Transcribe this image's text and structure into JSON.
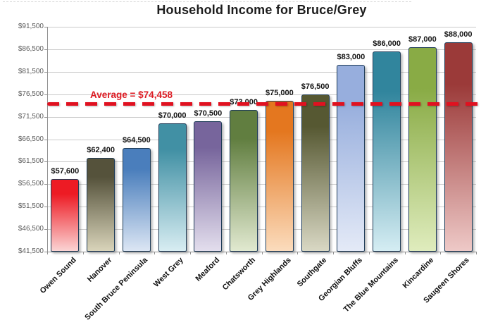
{
  "chart_data": {
    "type": "bar",
    "title": "Household Income for Bruce/Grey",
    "categories": [
      "Owen Sound",
      "Hanover",
      "South Bruce Peninsula",
      "West Grey",
      "Meaford",
      "Chatsworth",
      "Grey Highlands",
      "Southgate",
      "Georgian Bluffs",
      "The Blue Mountains",
      "Kincardine",
      "Saugeen Shores"
    ],
    "values": [
      57600,
      62400,
      64500,
      70000,
      70500,
      73000,
      75000,
      76500,
      83000,
      86000,
      87000,
      88000
    ],
    "value_labels": [
      "$57,600",
      "$62,400",
      "$64,500",
      "$70,000",
      "$70,500",
      "$73,000",
      "$75,000",
      "$76,500",
      "$83,000",
      "$86,000",
      "$87,000",
      "$88,000"
    ],
    "average": 74458,
    "average_label": "Average = $74,458",
    "ylim": [
      41500,
      91500
    ],
    "ytick_step": 5000,
    "ytick_labels": [
      "$41,500",
      "$46,500",
      "$51,500",
      "$56,500",
      "$61,500",
      "$66,500",
      "$71,500",
      "$76,500",
      "$81,500",
      "$86,500",
      "$91,500"
    ],
    "grid": true,
    "legend": false,
    "xlabel": "",
    "ylabel": "",
    "bar_colors": [
      {
        "top": "#ed1b24",
        "bottom": "#fbd4d4"
      },
      {
        "top": "#55523b",
        "bottom": "#d9d4ba"
      },
      {
        "top": "#4a7ebc",
        "bottom": "#dce6f4"
      },
      {
        "top": "#4190a4",
        "bottom": "#d8edf2"
      },
      {
        "top": "#77659c",
        "bottom": "#e3deed"
      },
      {
        "top": "#617e40",
        "bottom": "#e1e9d0"
      },
      {
        "top": "#e4771f",
        "bottom": "#fbdcbd"
      },
      {
        "top": "#565832",
        "bottom": "#d9d8c4"
      },
      {
        "top": "#97aedd",
        "bottom": "#e4eaf7"
      },
      {
        "top": "#31859d",
        "bottom": "#d5edf3"
      },
      {
        "top": "#89ab45",
        "bottom": "#dfecbd"
      },
      {
        "top": "#9b3a39",
        "bottom": "#eec9c7"
      }
    ]
  },
  "colors": {
    "average_line": "#e01120",
    "average_text": "#dd1a22",
    "bar_border": "#1f3c58",
    "gridline": "#c9c9c9",
    "axis": "#909090",
    "title_text": "#1d1d1d",
    "tick_text": "#5a5a5a",
    "value_text": "#151515"
  }
}
